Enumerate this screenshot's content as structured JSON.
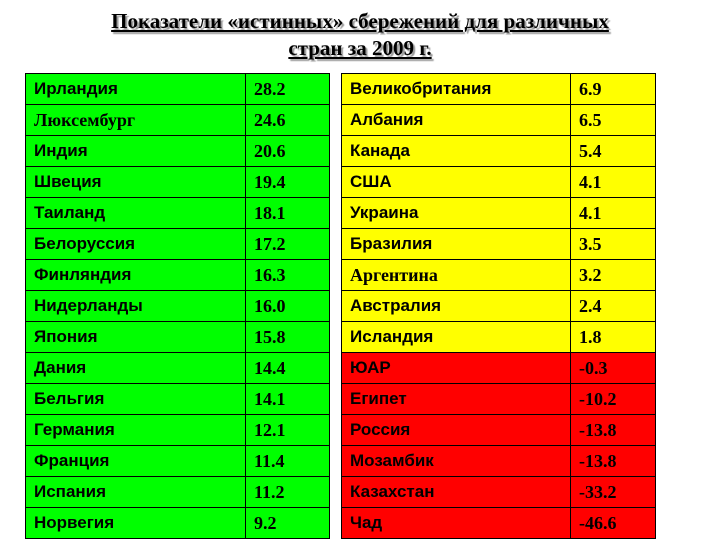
{
  "title_line1": "Показатели «истинных» сбережений для различных",
  "title_line2": "стран за 2009 г.",
  "colors": {
    "positive_left": "#00ff00",
    "positive_right": "#ffff00",
    "negative": "#ff0000"
  },
  "left_rows": [
    {
      "country": "Ирландия",
      "value": "28.2",
      "country_font": "sans"
    },
    {
      "country": "Люксембург",
      "value": "24.6",
      "country_font": "serif"
    },
    {
      "country": "Индия",
      "value": "20.6",
      "country_font": "sans"
    },
    {
      "country": "Швеция",
      "value": "19.4",
      "country_font": "sans"
    },
    {
      "country": "Таиланд",
      "value": "18.1",
      "country_font": "sans"
    },
    {
      "country": "Белоруссия",
      "value": "17.2",
      "country_font": "sans"
    },
    {
      "country": "Финляндия",
      "value": "16.3",
      "country_font": "sans"
    },
    {
      "country": "Нидерланды",
      "value": "16.0",
      "country_font": "sans"
    },
    {
      "country": "Япония",
      "value": "15.8",
      "country_font": "sans"
    },
    {
      "country": "Дания",
      "value": "14.4",
      "country_font": "sans"
    },
    {
      "country": "Бельгия",
      "value": "14.1",
      "country_font": "sans"
    },
    {
      "country": "Германия",
      "value": "12.1",
      "country_font": "sans"
    },
    {
      "country": "Франция",
      "value": "11.4",
      "country_font": "sans"
    },
    {
      "country": "Испания",
      "value": "11.2",
      "country_font": "sans"
    },
    {
      "country": "Норвегия",
      "value": "9.2",
      "country_font": "sans"
    }
  ],
  "right_rows": [
    {
      "country": "Великобритания",
      "value": "6.9",
      "color": "yellow",
      "country_font": "sans"
    },
    {
      "country": "Албания",
      "value": "6.5",
      "color": "yellow",
      "country_font": "sans"
    },
    {
      "country": "Канада",
      "value": "5.4",
      "color": "yellow",
      "country_font": "sans"
    },
    {
      "country": "США",
      "value": "4.1",
      "color": "yellow",
      "country_font": "sans"
    },
    {
      "country": "Украина",
      "value": "4.1",
      "color": "yellow",
      "country_font": "sans"
    },
    {
      "country": "Бразилия",
      "value": "3.5",
      "color": "yellow",
      "country_font": "sans"
    },
    {
      "country": "Аргентина",
      "value": "3.2",
      "color": "yellow",
      "country_font": "serif"
    },
    {
      "country": "Австралия",
      "value": "2.4",
      "color": "yellow",
      "country_font": "sans"
    },
    {
      "country": "Исландия",
      "value": "1.8",
      "color": "yellow",
      "country_font": "sans"
    },
    {
      "country": "ЮАР",
      "value": "-0.3",
      "color": "red",
      "country_font": "sans"
    },
    {
      "country": "Египет",
      "value": "-10.2",
      "color": "red",
      "country_font": "sans"
    },
    {
      "country": "Россия",
      "value": "-13.8",
      "color": "red",
      "country_font": "sans"
    },
    {
      "country": "Мозамбик",
      "value": "-13.8",
      "color": "red",
      "country_font": "sans"
    },
    {
      "country": "Казахстан",
      "value": "-33.2",
      "color": "red",
      "country_font": "sans"
    },
    {
      "country": "Чад",
      "value": "-46.6",
      "color": "red",
      "country_font": "sans"
    }
  ]
}
